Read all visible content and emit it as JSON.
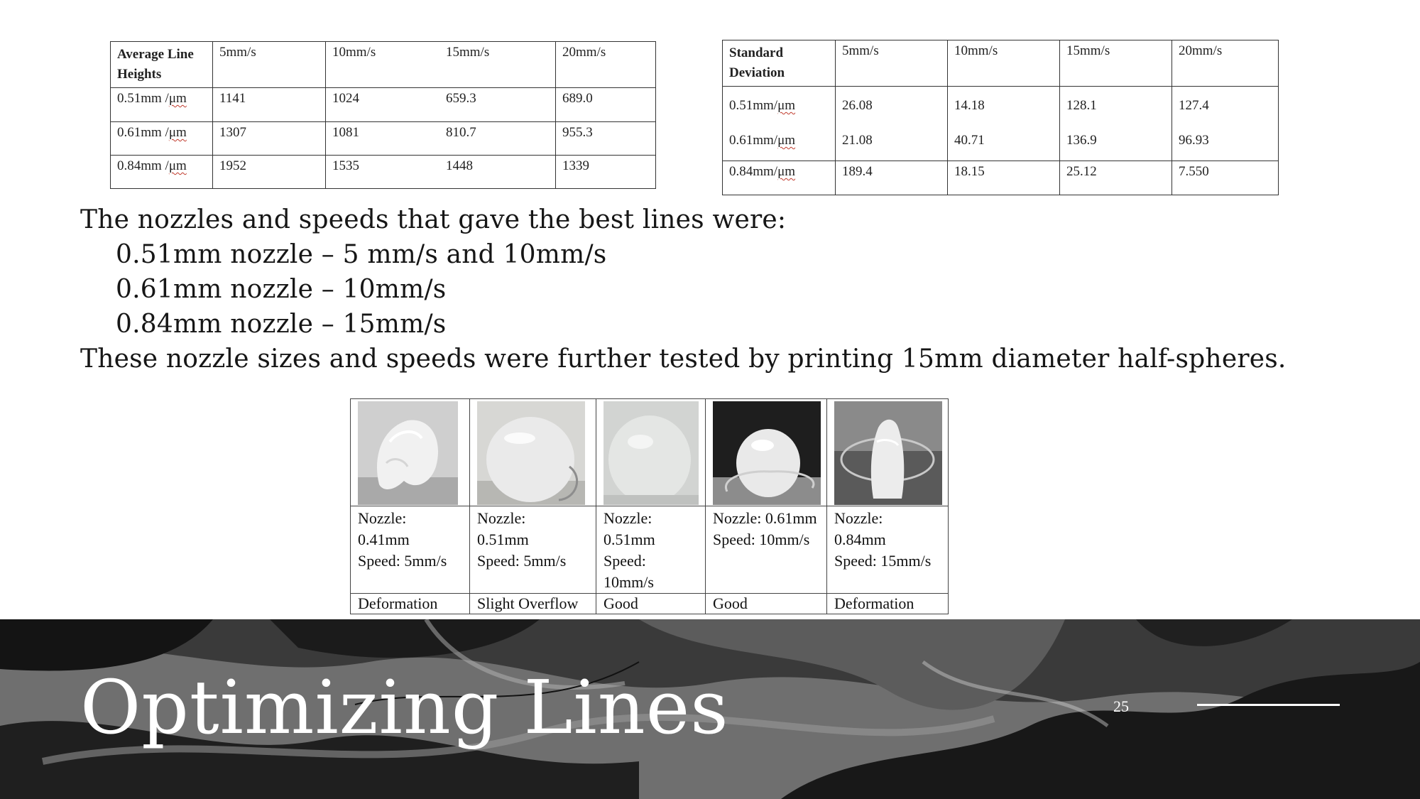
{
  "average_table": {
    "header": [
      "Average  Line Heights",
      "5mm/s",
      "10mm/s",
      "15mm/s",
      "20mm/s"
    ],
    "rows": [
      {
        "label_pre": "0.51mm /",
        "unit": "μm",
        "values": [
          "1141",
          "1024",
          "659.3",
          "689.0"
        ]
      },
      {
        "label_pre": "0.61mm /",
        "unit": "μm",
        "values": [
          "1307",
          "1081",
          "810.7",
          "955.3"
        ]
      },
      {
        "label_pre": "0.84mm /",
        "unit": "μm",
        "values": [
          "1952",
          "1535",
          "1448",
          "1339"
        ]
      }
    ]
  },
  "std_table": {
    "header": [
      "Standard Deviation",
      "5mm/s",
      "10mm/s",
      "15mm/s",
      "20mm/s"
    ],
    "rows": [
      {
        "label_pre": "0.51mm/",
        "unit": "μm",
        "values": [
          "26.08",
          "14.18",
          "128.1",
          "127.4"
        ]
      },
      {
        "label_pre": "0.61mm/",
        "unit": "μm",
        "values": [
          "21.08",
          "40.71",
          "136.9",
          "96.93"
        ]
      },
      {
        "label_pre": "0.84mm/",
        "unit": "μm",
        "values": [
          "189.4",
          "18.15",
          "25.12",
          "7.550"
        ]
      }
    ]
  },
  "body_text": {
    "intro": "The nozzles and speeds that gave the best lines were:",
    "items": [
      "0.51mm nozzle – 5 mm/s and 10mm/s",
      "0.61mm nozzle – 10mm/s",
      "0.84mm nozzle – 15mm/s"
    ],
    "conclusion": "These nozzle sizes and speeds were further tested by printing 15mm diameter half-spheres."
  },
  "results_table": {
    "columns": [
      {
        "label": "Nozzle:\n0.41mm\nSpeed: 5mm/s",
        "result": "Deformation"
      },
      {
        "label": "Nozzle:\n0.51mm\nSpeed: 5mm/s",
        "result": "Slight Overflow"
      },
      {
        "label": "Nozzle:\n0.51mm\nSpeed: 10mm/s",
        "result": "Good"
      },
      {
        "label": "Nozzle: 0.61mm\nSpeed: 10mm/s",
        "result": "Good"
      },
      {
        "label": "Nozzle:   0.84mm\nSpeed: 15mm/s",
        "result": "Deformation"
      }
    ]
  },
  "footer": {
    "title": "Optimizing Lines",
    "page_number": "25"
  }
}
